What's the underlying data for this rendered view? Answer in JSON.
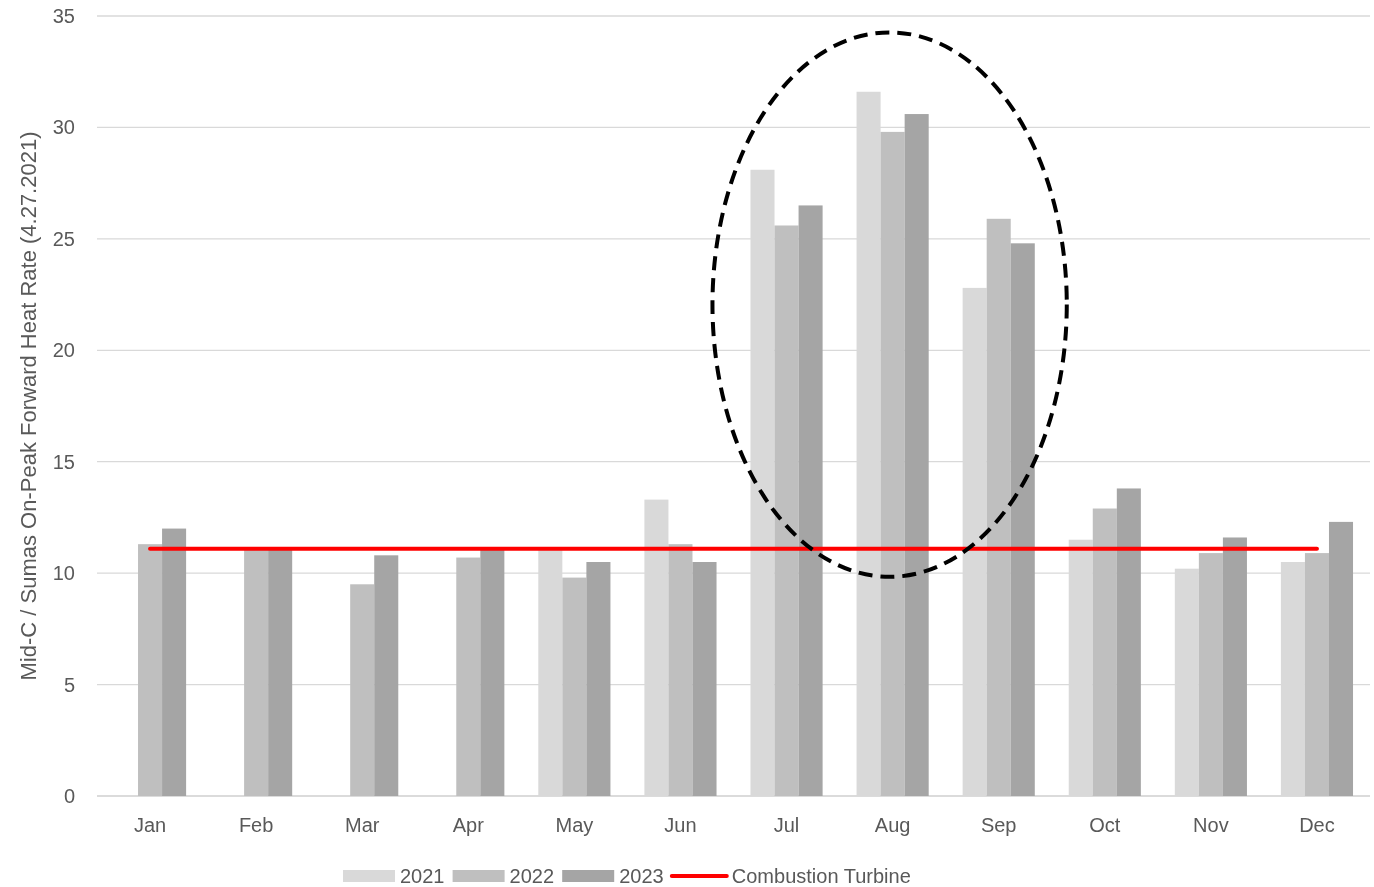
{
  "chart_data": {
    "type": "bar",
    "ylabel": "Mid-C / Sumas On-Peak Forward Heat Rate (4.27.2021)",
    "categories": [
      "Jan",
      "Feb",
      "Mar",
      "Apr",
      "May",
      "Jun",
      "Jul",
      "Aug",
      "Sep",
      "Oct",
      "Nov",
      "Dec"
    ],
    "series": [
      {
        "name": "2021",
        "color": "#d9d9d9",
        "values": [
          null,
          null,
          null,
          null,
          11.1,
          13.3,
          28.1,
          31.6,
          22.8,
          11.5,
          10.2,
          10.5
        ]
      },
      {
        "name": "2022",
        "color": "#bfbfbf",
        "values": [
          11.3,
          11.1,
          9.5,
          10.7,
          9.8,
          11.3,
          25.6,
          29.8,
          25.9,
          12.9,
          10.9,
          10.9
        ]
      },
      {
        "name": "2023",
        "color": "#a5a5a5",
        "values": [
          12.0,
          11.1,
          10.8,
          11.1,
          10.5,
          10.5,
          26.5,
          30.6,
          24.8,
          13.8,
          11.6,
          12.3
        ]
      },
      {
        "name": "Combustion Turbine",
        "type": "line",
        "color": "#ff0000",
        "values": [
          11.1,
          11.1,
          11.1,
          11.1,
          11.1,
          11.1,
          11.1,
          11.1,
          11.1,
          11.1,
          11.1,
          11.1
        ]
      }
    ],
    "ylim": [
      0,
      35
    ],
    "yticks": [
      0,
      5,
      10,
      15,
      20,
      25,
      30,
      35
    ],
    "grid": "y",
    "legend": "bottom"
  }
}
